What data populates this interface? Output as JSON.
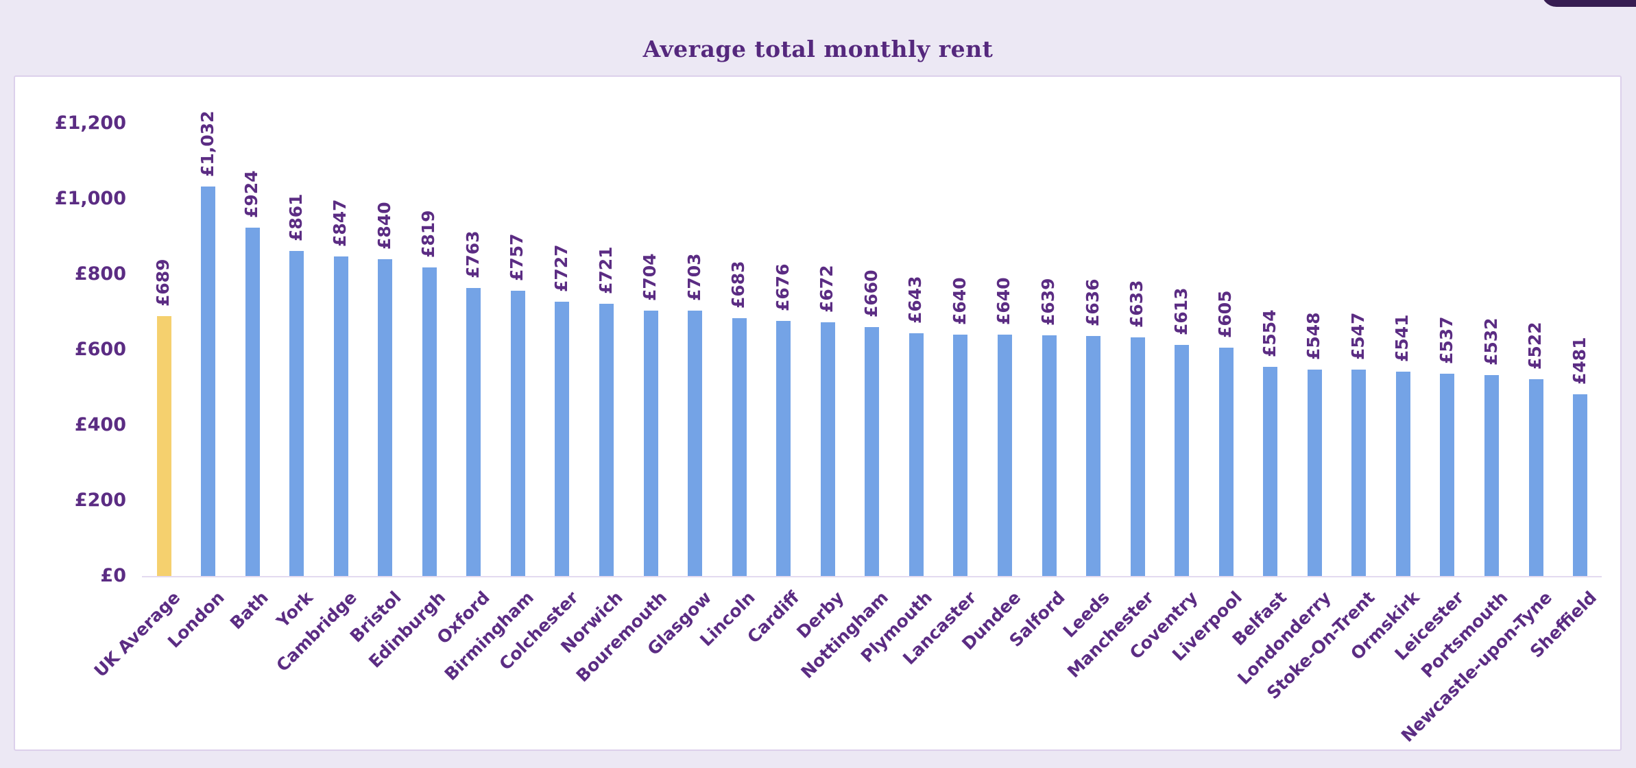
{
  "header": {
    "title": "Average total monthly rent"
  },
  "colors": {
    "page_background": "#ECE8F4",
    "panel_border": "#DCD0EB",
    "text_purple": "#5B2C83",
    "top_right_pill": "#371D52"
  },
  "chart_data": {
    "type": "bar",
    "title": "Average total monthly rent",
    "categories": [
      "UK Average",
      "London",
      "Bath",
      "York",
      "Cambridge",
      "Bristol",
      "Edinburgh",
      "Oxford",
      "Birmingham",
      "Colchester",
      "Norwich",
      "Bouremouth",
      "Glasgow",
      "Lincoln",
      "Cardiff",
      "Derby",
      "Nottingham",
      "Plymouth",
      "Lancaster",
      "Dundee",
      "Salford",
      "Leeds",
      "Manchester",
      "Coventry",
      "Liverpool",
      "Belfast",
      "Londonderry",
      "Stoke-On-Trent",
      "Ormskirk",
      "Leicester",
      "Portsmouth",
      "Newcastle-upon-Tyne",
      "Sheffield"
    ],
    "values": [
      689,
      1032,
      924,
      861,
      847,
      840,
      819,
      763,
      757,
      727,
      721,
      704,
      703,
      683,
      676,
      672,
      660,
      643,
      640,
      640,
      639,
      636,
      633,
      613,
      605,
      554,
      548,
      547,
      541,
      537,
      532,
      522,
      481
    ],
    "value_labels": [
      "£689",
      "£1,032",
      "£924",
      "£861",
      "£847",
      "£840",
      "£819",
      "£763",
      "£757",
      "£727",
      "£721",
      "£704",
      "£703",
      "£683",
      "£676",
      "£672",
      "£660",
      "£643",
      "£640",
      "£640",
      "£639",
      "£636",
      "£633",
      "£613",
      "£605",
      "£554",
      "£548",
      "£547",
      "£541",
      "£537",
      "£532",
      "£522",
      "£481"
    ],
    "highlight_index": 0,
    "bar_color": "#74A3E6",
    "highlight_color": "#F5D06E",
    "xlabel": "",
    "ylabel": "",
    "ylim": [
      0,
      1200
    ],
    "ytick_step": 200,
    "yticks": [
      "£0",
      "£200",
      "£400",
      "£600",
      "£800",
      "£1,000",
      "£1,200"
    ],
    "grid": false,
    "legend": false,
    "value_label_rotation_deg": -90,
    "x_label_rotation_deg": -45
  }
}
